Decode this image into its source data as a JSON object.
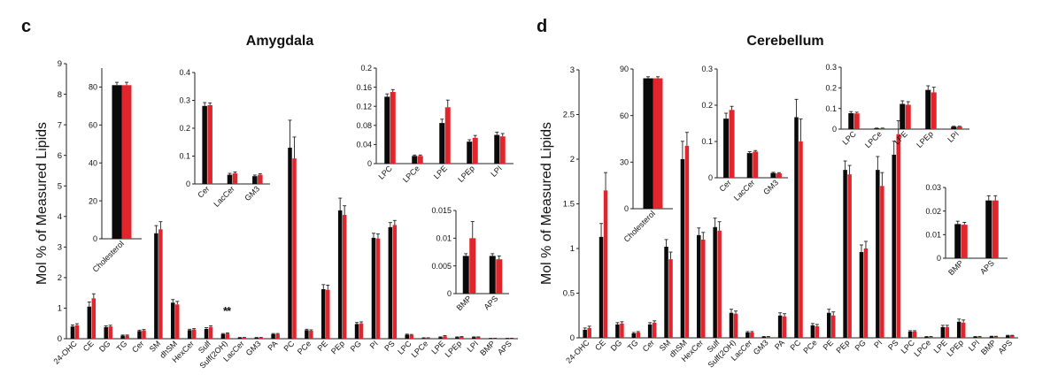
{
  "colors": {
    "black": "#0a0a0a",
    "red": "#e0262c",
    "axis": "#222222",
    "err": "#222222"
  },
  "panels": [
    {
      "letter": "c",
      "title": "Amygdala"
    },
    {
      "letter": "d",
      "title": "Cerebellum"
    }
  ],
  "ylabel": "Mol  % of Measured Lipids",
  "significance": "**",
  "chart_data": [
    {
      "type": "bar",
      "id": "amy-main",
      "panel": "c",
      "title": "Amygdala",
      "ylabel": "Mol  % of Measured Lipids",
      "ylim": [
        0,
        9
      ],
      "yticks": [
        "0",
        "1",
        "2",
        "3",
        "4",
        "5",
        "6",
        "7",
        "8",
        "9"
      ],
      "categories": [
        "24-OHC",
        "CE",
        "DG",
        "TG",
        "Cer",
        "SM",
        "dhSM",
        "HexCer",
        "Sulf",
        "Sulf(2OH)",
        "LacCer",
        "GM3",
        "PA",
        "PC",
        "PCe",
        "PE",
        "PEp",
        "PG",
        "PI",
        "PS",
        "LPC",
        "LPCe",
        "LPE",
        "LPEp",
        "LPI",
        "BMP",
        "APS"
      ],
      "series": [
        {
          "name": "black",
          "values": [
            0.4,
            1.05,
            0.38,
            0.1,
            0.25,
            3.45,
            1.18,
            0.28,
            0.32,
            0.15,
            0.03,
            0.03,
            0.15,
            6.25,
            0.28,
            1.62,
            4.2,
            0.48,
            3.3,
            3.65,
            0.13,
            0.02,
            0.05,
            0.05,
            0.05,
            0.01,
            0.01
          ],
          "errors": [
            0.05,
            0.15,
            0.04,
            0.02,
            0.03,
            0.25,
            0.1,
            0.03,
            0.04,
            0.02,
            0.01,
            0.01,
            0.02,
            0.9,
            0.03,
            0.15,
            0.4,
            0.05,
            0.15,
            0.15,
            0.02,
            0.01,
            0.01,
            0.01,
            0.01,
            0.005,
            0.005
          ]
        },
        {
          "name": "red",
          "values": [
            0.44,
            1.32,
            0.4,
            0.1,
            0.27,
            3.58,
            1.12,
            0.3,
            0.38,
            0.17,
            0.03,
            0.03,
            0.15,
            5.9,
            0.26,
            1.6,
            4.05,
            0.5,
            3.28,
            3.72,
            0.12,
            0.02,
            0.08,
            0.06,
            0.05,
            0.01,
            0.01
          ],
          "errors": [
            0.05,
            0.15,
            0.04,
            0.02,
            0.03,
            0.25,
            0.1,
            0.03,
            0.04,
            0.02,
            0.01,
            0.01,
            0.02,
            0.7,
            0.03,
            0.15,
            0.3,
            0.05,
            0.15,
            0.15,
            0.02,
            0.01,
            0.02,
            0.01,
            0.01,
            0.005,
            0.005
          ]
        }
      ]
    },
    {
      "type": "bar",
      "id": "amy-chol",
      "panel": "c",
      "ylim": [
        0,
        90
      ],
      "yticks": [
        "0",
        "20",
        "40",
        "60",
        "80"
      ],
      "categories": [
        "Cholesterol"
      ],
      "series": [
        {
          "name": "black",
          "values": [
            81
          ],
          "errors": [
            1.5
          ]
        },
        {
          "name": "red",
          "values": [
            81
          ],
          "errors": [
            1.5
          ]
        }
      ]
    },
    {
      "type": "bar",
      "id": "amy-cer",
      "panel": "c",
      "ylim": [
        0,
        0.4
      ],
      "yticks": [
        "0",
        "0.1",
        "0.2",
        "0.3",
        "0.4"
      ],
      "categories": [
        "Cer",
        "LacCer",
        "GM3"
      ],
      "series": [
        {
          "name": "black",
          "values": [
            0.28,
            0.033,
            0.028
          ],
          "errors": [
            0.012,
            0.005,
            0.004
          ]
        },
        {
          "name": "red",
          "values": [
            0.283,
            0.038,
            0.033
          ],
          "errors": [
            0.008,
            0.005,
            0.004
          ]
        }
      ]
    },
    {
      "type": "bar",
      "id": "amy-lyso",
      "panel": "c",
      "ylim": [
        0,
        0.2
      ],
      "yticks": [
        "0",
        "0.04",
        "0.08",
        "0.12",
        "0.16",
        "0.2"
      ],
      "categories": [
        "LPC",
        "LPCe",
        "LPE",
        "LPEp",
        "LPI"
      ],
      "series": [
        {
          "name": "black",
          "values": [
            0.14,
            0.016,
            0.085,
            0.046,
            0.06
          ],
          "errors": [
            0.006,
            0.002,
            0.008,
            0.004,
            0.006
          ]
        },
        {
          "name": "red",
          "values": [
            0.15,
            0.016,
            0.118,
            0.054,
            0.057
          ],
          "errors": [
            0.005,
            0.002,
            0.015,
            0.005,
            0.006
          ]
        }
      ]
    },
    {
      "type": "bar",
      "id": "amy-bmp",
      "panel": "c",
      "ylim": [
        0,
        0.015
      ],
      "yticks": [
        "0",
        "0.005",
        "0.01",
        "0.015"
      ],
      "categories": [
        "BMP",
        "APS"
      ],
      "series": [
        {
          "name": "black",
          "values": [
            0.0068,
            0.0068
          ],
          "errors": [
            0.0004,
            0.0004
          ]
        },
        {
          "name": "red",
          "values": [
            0.01,
            0.0062
          ],
          "errors": [
            0.003,
            0.0006
          ]
        }
      ]
    },
    {
      "type": "bar",
      "id": "cb-main",
      "panel": "d",
      "title": "Cerebellum",
      "ylabel": "Mol  % of Measured Lipids",
      "ylim": [
        0,
        3
      ],
      "yticks": [
        "0",
        "0.5",
        "1",
        "1.5",
        "2",
        "2.5",
        "3"
      ],
      "categories": [
        "24-OHC",
        "CE",
        "DG",
        "TG",
        "Cer",
        "SM",
        "dhSM",
        "HexCer",
        "Sulf",
        "Sulf(2OH)",
        "LacCer",
        "GM3",
        "PA",
        "PC",
        "PCe",
        "PE",
        "PEp",
        "PG",
        "PI",
        "PS",
        "LPC",
        "LPCe",
        "LPE",
        "LPEp",
        "LPI",
        "BMP",
        "APS"
      ],
      "series": [
        {
          "name": "black",
          "values": [
            0.09,
            1.13,
            0.15,
            0.05,
            0.15,
            1.02,
            2.0,
            1.15,
            1.24,
            0.28,
            0.06,
            0.01,
            0.25,
            2.47,
            0.14,
            0.28,
            1.88,
            0.96,
            1.88,
            2.05,
            0.07,
            0.01,
            0.12,
            0.18,
            0.01,
            0.015,
            0.025
          ],
          "errors": [
            0.02,
            0.15,
            0.02,
            0.01,
            0.02,
            0.08,
            0.2,
            0.08,
            0.1,
            0.04,
            0.01,
            0.005,
            0.03,
            0.2,
            0.02,
            0.04,
            0.1,
            0.08,
            0.15,
            0.15,
            0.01,
            0.005,
            0.02,
            0.03,
            0.005,
            0.003,
            0.003
          ]
        },
        {
          "name": "red",
          "values": [
            0.11,
            1.65,
            0.16,
            0.06,
            0.17,
            0.88,
            2.15,
            1.1,
            1.2,
            0.27,
            0.06,
            0.01,
            0.24,
            2.2,
            0.13,
            0.25,
            1.83,
            1.0,
            1.7,
            2.28,
            0.07,
            0.01,
            0.12,
            0.17,
            0.01,
            0.014,
            0.025
          ],
          "errors": [
            0.02,
            0.2,
            0.02,
            0.01,
            0.02,
            0.08,
            0.15,
            0.08,
            0.1,
            0.03,
            0.01,
            0.005,
            0.03,
            0.25,
            0.02,
            0.04,
            0.1,
            0.08,
            0.15,
            0.15,
            0.01,
            0.005,
            0.02,
            0.03,
            0.005,
            0.003,
            0.003
          ]
        }
      ]
    },
    {
      "type": "bar",
      "id": "cb-chol",
      "panel": "d",
      "ylim": [
        0,
        90
      ],
      "yticks": [
        "0",
        "30",
        "60",
        "90"
      ],
      "categories": [
        "Cholesterol"
      ],
      "series": [
        {
          "name": "black",
          "values": [
            84
          ],
          "errors": [
            1.0
          ]
        },
        {
          "name": "red",
          "values": [
            84
          ],
          "errors": [
            1.0
          ]
        }
      ]
    },
    {
      "type": "bar",
      "id": "cb-cer",
      "panel": "d",
      "ylim": [
        0,
        0.3
      ],
      "yticks": [
        "0",
        "0.1",
        "0.2",
        "0.3"
      ],
      "categories": [
        "Cer",
        "LacCer",
        "GM3"
      ],
      "series": [
        {
          "name": "black",
          "values": [
            0.163,
            0.068,
            0.013
          ],
          "errors": [
            0.015,
            0.004,
            0.002
          ]
        },
        {
          "name": "red",
          "values": [
            0.187,
            0.072,
            0.012
          ],
          "errors": [
            0.01,
            0.003,
            0.002
          ]
        }
      ]
    },
    {
      "type": "bar",
      "id": "cb-lyso",
      "panel": "d",
      "ylim": [
        0,
        0.3
      ],
      "yticks": [
        "0",
        "0.1",
        "0.2",
        "0.3"
      ],
      "categories": [
        "LPC",
        "LPCe",
        "LPE",
        "LPEp",
        "LPI"
      ],
      "series": [
        {
          "name": "black",
          "values": [
            0.077,
            0.004,
            0.122,
            0.19,
            0.012
          ],
          "errors": [
            0.008,
            0.001,
            0.015,
            0.02,
            0.002
          ]
        },
        {
          "name": "red",
          "values": [
            0.076,
            0.004,
            0.118,
            0.178,
            0.012
          ],
          "errors": [
            0.006,
            0.001,
            0.015,
            0.025,
            0.002
          ]
        }
      ]
    },
    {
      "type": "bar",
      "id": "cb-bmp",
      "panel": "d",
      "ylim": [
        0,
        0.03
      ],
      "yticks": [
        "0",
        "0.01",
        "0.02",
        "0.03"
      ],
      "categories": [
        "BMP",
        "APS"
      ],
      "series": [
        {
          "name": "black",
          "values": [
            0.0145,
            0.0245
          ],
          "errors": [
            0.0012,
            0.002
          ]
        },
        {
          "name": "red",
          "values": [
            0.0142,
            0.0245
          ],
          "errors": [
            0.001,
            0.002
          ]
        }
      ]
    }
  ]
}
